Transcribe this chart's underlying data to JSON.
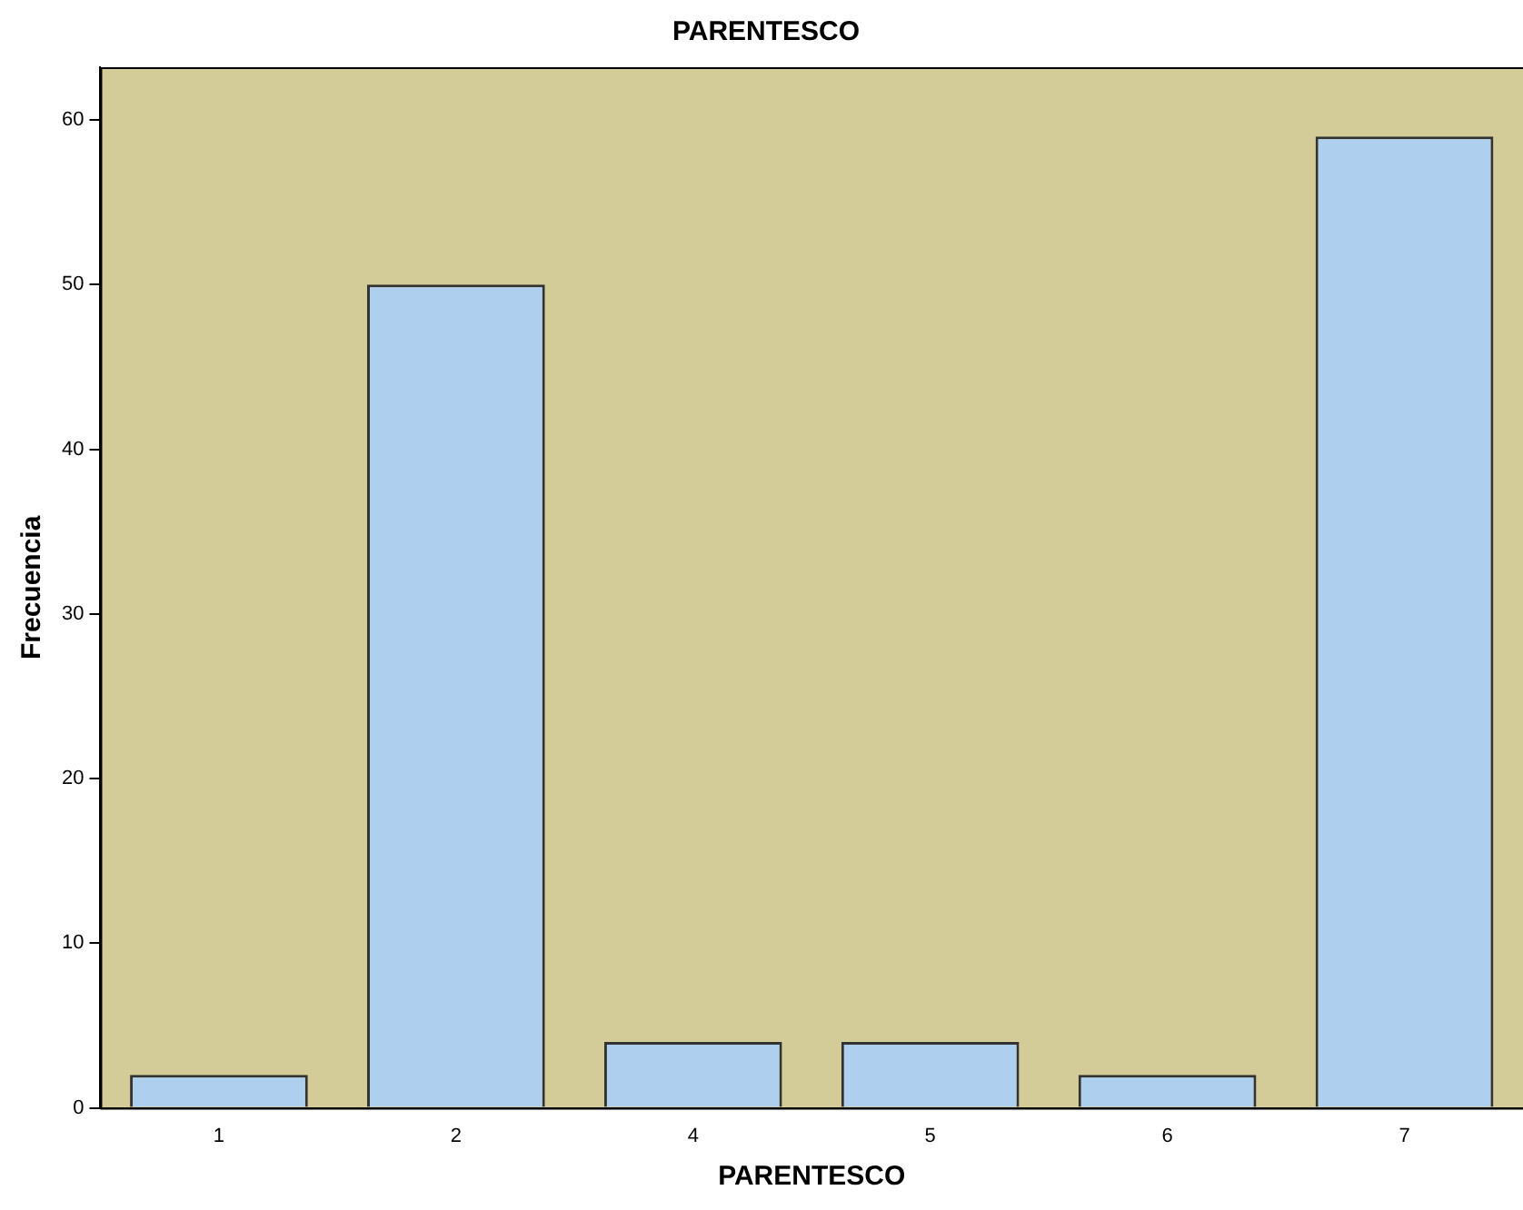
{
  "chart_data": {
    "type": "bar",
    "title": "PARENTESCO",
    "xlabel": "PARENTESCO",
    "ylabel": "Frecuencia",
    "categories": [
      "1",
      "2",
      "4",
      "5",
      "6",
      "7"
    ],
    "values": [
      2,
      50,
      4,
      4,
      2,
      59
    ],
    "color": "#aed0ee",
    "ylim": [
      0,
      63.2
    ],
    "yticks": [
      0,
      10,
      20,
      30,
      40,
      50,
      60
    ],
    "grid": false,
    "legend": false
  }
}
